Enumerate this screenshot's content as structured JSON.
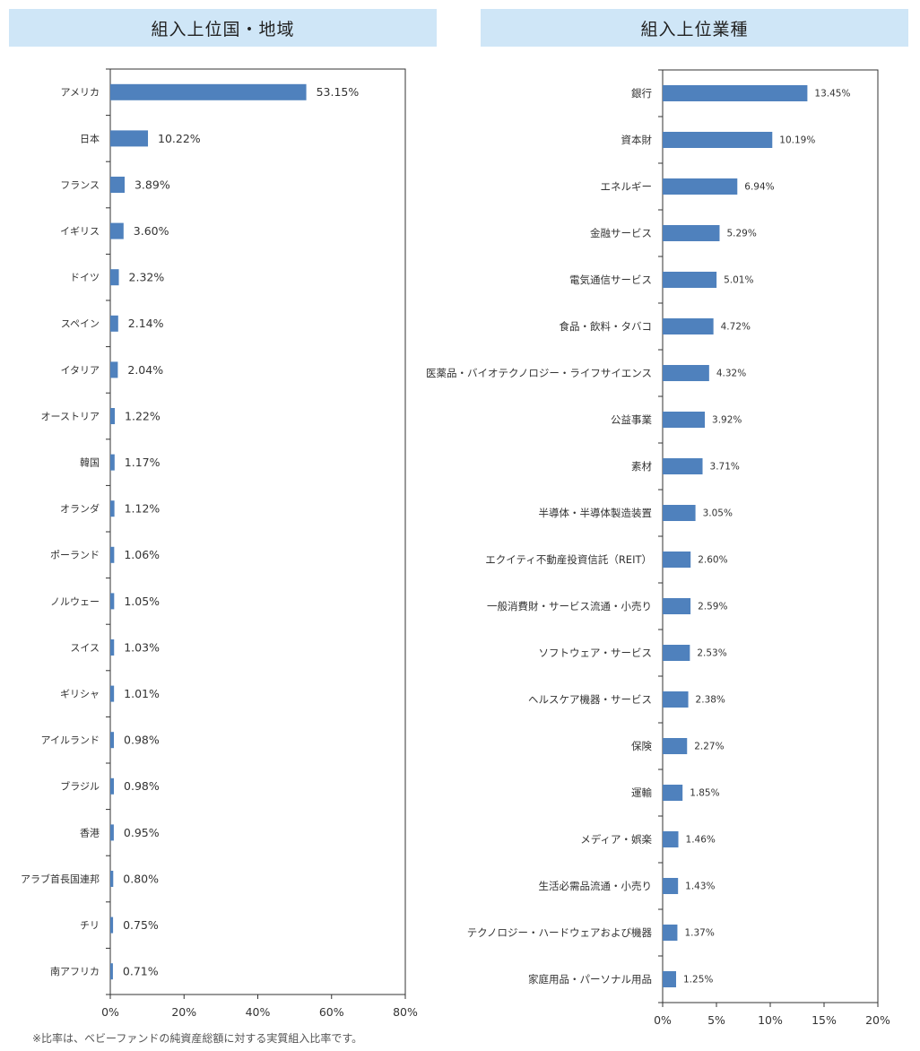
{
  "colors": {
    "bar": "#4f81bd",
    "header_bg": "#cfe6f7",
    "axis": "#333333"
  },
  "footnote": "※比率は、ベビーファンドの純資産総額に対する実質組入比率です。",
  "chart_data": [
    {
      "type": "bar",
      "orientation": "horizontal",
      "title": "組入上位国・地域",
      "xlim": [
        0,
        80
      ],
      "xticks": [
        "0%",
        "20%",
        "40%",
        "60%",
        "80%"
      ],
      "tick_values": [
        0,
        20,
        40,
        60,
        80
      ],
      "grid": false,
      "categories": [
        "アメリカ",
        "日本",
        "フランス",
        "イギリス",
        "ドイツ",
        "スペイン",
        "イタリア",
        "オーストリア",
        "韓国",
        "オランダ",
        "ポーランド",
        "ノルウェー",
        "スイス",
        "ギリシャ",
        "アイルランド",
        "ブラジル",
        "香港",
        "アラブ首長国連邦",
        "チリ",
        "南アフリカ"
      ],
      "values": [
        53.15,
        10.22,
        3.89,
        3.6,
        2.32,
        2.14,
        2.04,
        1.22,
        1.17,
        1.12,
        1.06,
        1.05,
        1.03,
        1.01,
        0.98,
        0.98,
        0.95,
        0.8,
        0.75,
        0.71
      ],
      "value_labels": [
        "53.15%",
        "10.22%",
        "3.89%",
        "3.60%",
        "2.32%",
        "2.14%",
        "2.04%",
        "1.22%",
        "1.17%",
        "1.12%",
        "1.06%",
        "1.05%",
        "1.03%",
        "1.01%",
        "0.98%",
        "0.98%",
        "0.95%",
        "0.80%",
        "0.75%",
        "0.71%"
      ]
    },
    {
      "type": "bar",
      "orientation": "horizontal",
      "title": "組入上位業種",
      "xlim": [
        0,
        20
      ],
      "xticks": [
        "0%",
        "5%",
        "10%",
        "15%",
        "20%"
      ],
      "tick_values": [
        0,
        5,
        10,
        15,
        20
      ],
      "grid": false,
      "categories": [
        "銀行",
        "資本財",
        "エネルギー",
        "金融サービス",
        "電気通信サービス",
        "食品・飲料・タバコ",
        "医薬品・バイオテクノロジー・ライフサイエンス",
        "公益事業",
        "素材",
        "半導体・半導体製造装置",
        "エクイティ不動産投資信託（REIT）",
        "一般消費財・サービス流通・小売り",
        "ソフトウェア・サービス",
        "ヘルスケア機器・サービス",
        "保険",
        "運輸",
        "メディア・娯楽",
        "生活必需品流通・小売り",
        "テクノロジー・ハードウェアおよび機器",
        "家庭用品・パーソナル用品"
      ],
      "values": [
        13.45,
        10.19,
        6.94,
        5.29,
        5.01,
        4.72,
        4.32,
        3.92,
        3.71,
        3.05,
        2.6,
        2.59,
        2.53,
        2.38,
        2.27,
        1.85,
        1.46,
        1.43,
        1.37,
        1.25
      ],
      "value_labels": [
        "13.45%",
        "10.19%",
        "6.94%",
        "5.29%",
        "5.01%",
        "4.72%",
        "4.32%",
        "3.92%",
        "3.71%",
        "3.05%",
        "2.60%",
        "2.59%",
        "2.53%",
        "2.38%",
        "2.27%",
        "1.85%",
        "1.46%",
        "1.43%",
        "1.37%",
        "1.25%"
      ]
    }
  ]
}
